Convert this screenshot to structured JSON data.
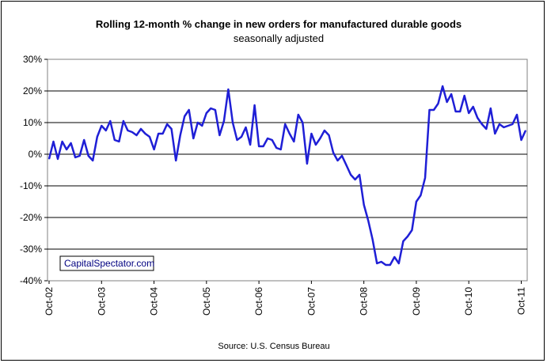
{
  "chart_data": {
    "type": "line",
    "title": "Rolling 12-month %  change in new orders for manufactured durable goods",
    "subtitle": "seasonally adjusted",
    "source": "Source: U.S. Census Bureau",
    "watermark": "CapitalSpectator.com",
    "xlabel": "",
    "ylabel": "",
    "ylim": [
      -40,
      30
    ],
    "y_ticks": [
      30,
      20,
      10,
      0,
      -10,
      -20,
      -30,
      -40
    ],
    "y_tick_labels": [
      "30%",
      "20%",
      "10%",
      "0%",
      "-10%",
      "-20%",
      "-30%",
      "-40%"
    ],
    "x_tick_labels": [
      "Oct-02",
      "Oct-03",
      "Oct-04",
      "Oct-05",
      "Oct-06",
      "Oct-07",
      "Oct-08",
      "Oct-09",
      "Oct-10",
      "Oct-11"
    ],
    "grid": true,
    "line_color": "#1f1fd6",
    "series": [
      {
        "start": "Oct-02",
        "values": [
          -1.5,
          4,
          -1.5,
          4,
          1.5,
          3.5,
          -1,
          -0.5,
          4.5,
          -0.5,
          -2,
          5.5,
          9,
          7.5,
          10.5,
          4.5,
          4,
          10.5,
          7.5,
          7,
          6,
          8,
          6.5,
          5.5,
          1.5,
          6.5,
          6.5,
          9.5,
          8,
          -2,
          6,
          12,
          14,
          5,
          10,
          9,
          13,
          14.5,
          14,
          6,
          10.5,
          20.5,
          10,
          4.5,
          5.5,
          8.5,
          3,
          15.5,
          2.5,
          2.5,
          5,
          4.5,
          2,
          1.5,
          9.5,
          6.5,
          4,
          12.5,
          10,
          -3,
          6.5,
          3,
          5,
          7.5,
          6,
          0.5,
          -2,
          -0.5,
          -3.5,
          -6.5,
          -8,
          -6.5,
          -16,
          -21,
          -27,
          -34.5,
          -34,
          -35,
          -35,
          -32.5,
          -34.5,
          -27.5,
          -26,
          -24,
          -15,
          -13,
          -7.5,
          14,
          14,
          16,
          21.5,
          16.5,
          19,
          13.5,
          13.5,
          18.5,
          13,
          15,
          11.5,
          9.5,
          8,
          14.5,
          6.5,
          9.5,
          8.5,
          9,
          9.5,
          12.5,
          4.5,
          7.5
        ]
      }
    ]
  }
}
